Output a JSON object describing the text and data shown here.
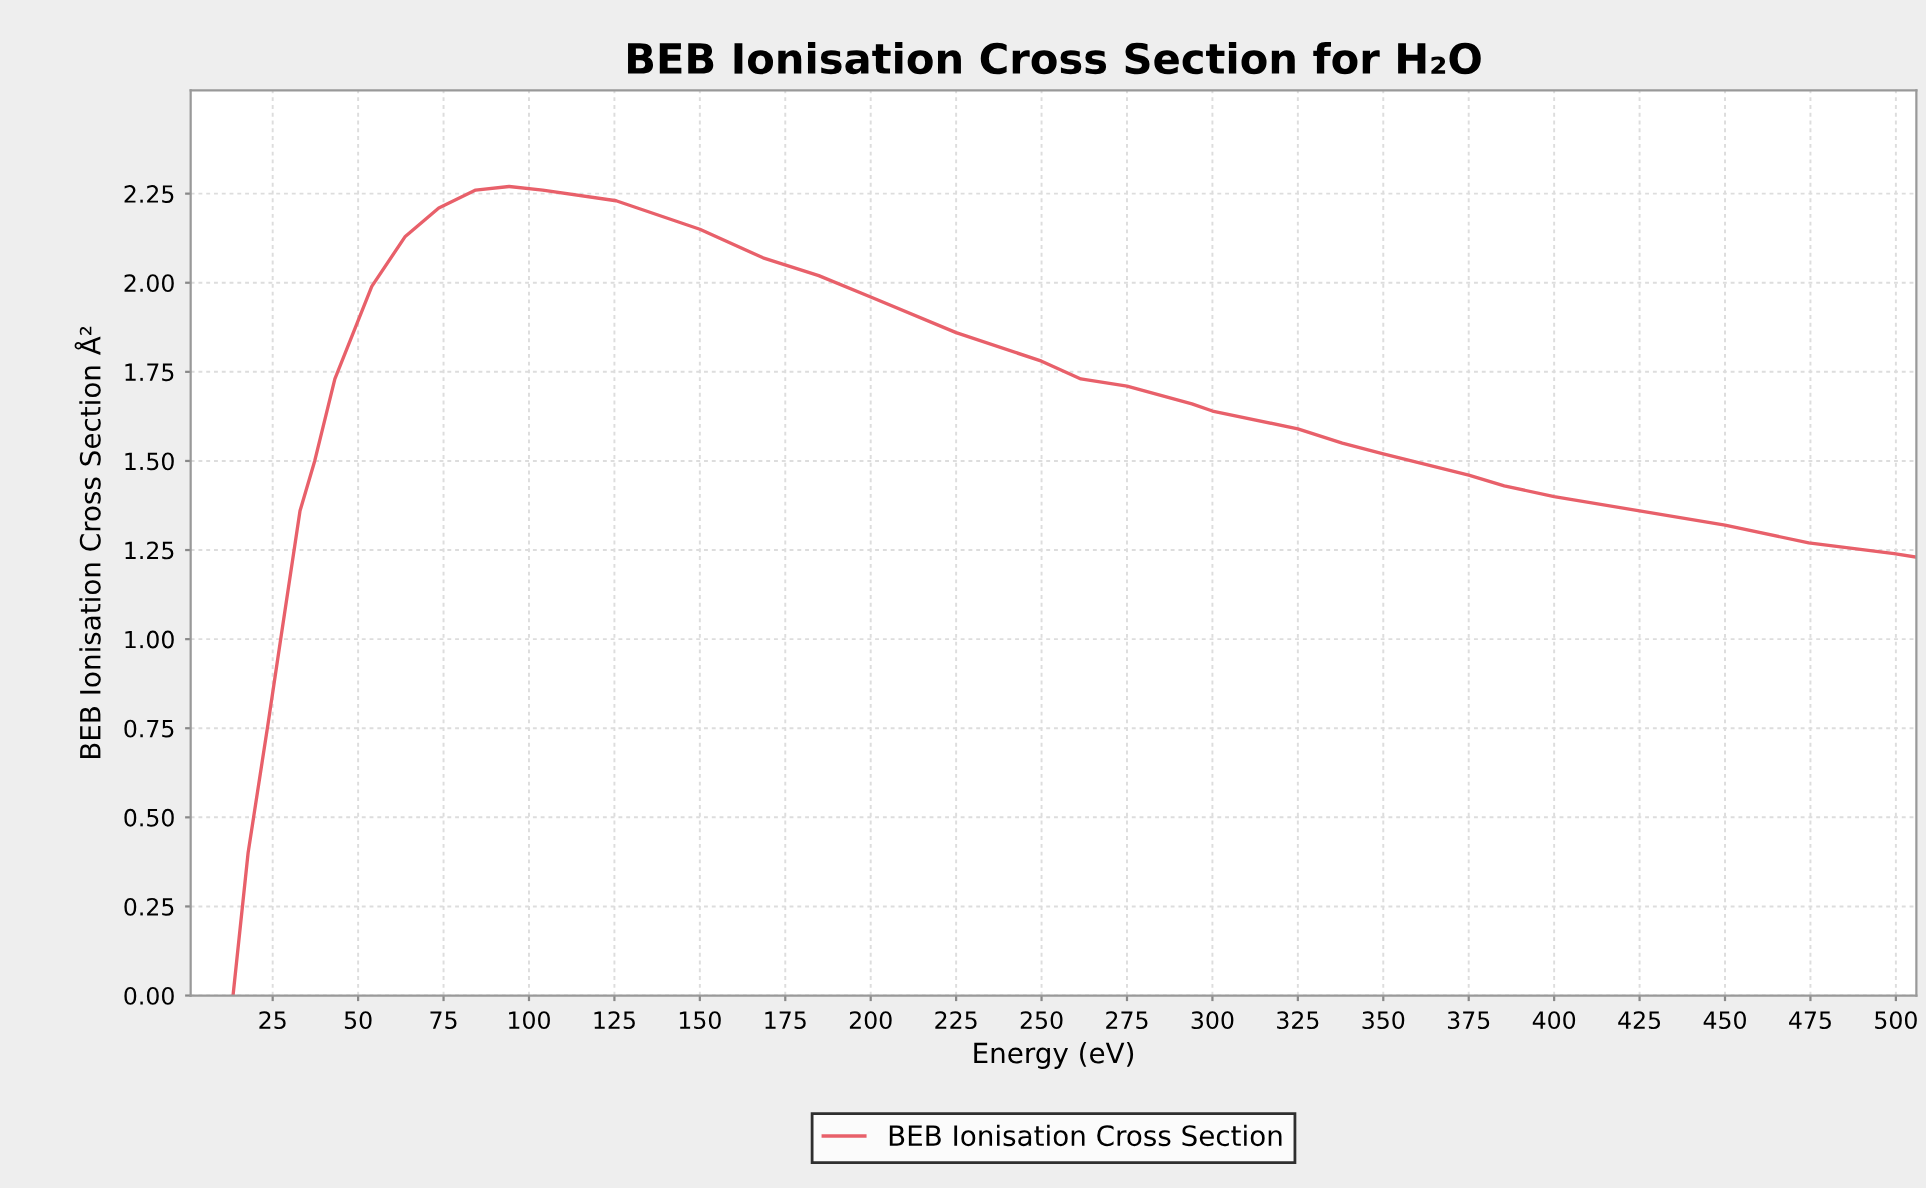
{
  "chart_data": {
    "type": "line",
    "title": "BEB Ionisation Cross Section for H₂O",
    "xlabel": "Energy (eV)",
    "ylabel": "BEB Ionisation Cross Section Å²",
    "x": [
      13.4,
      17.8,
      23.6,
      27.5,
      33.0,
      37.3,
      43.2,
      54.0,
      63.8,
      73.6,
      84.4,
      94.2,
      104,
      125.5,
      150,
      168.5,
      184.8,
      200,
      225,
      250,
      261.5,
      275,
      294,
      300,
      325,
      338,
      350,
      375,
      385.4,
      400,
      425,
      450,
      474.5,
      499.5,
      506
    ],
    "series": [
      {
        "name": "BEB Ionisation Cross Section",
        "color": "#e8606a",
        "values": [
          0.0,
          0.4,
          0.76,
          1.01,
          1.36,
          1.5,
          1.73,
          1.99,
          2.13,
          2.21,
          2.26,
          2.27,
          2.26,
          2.23,
          2.15,
          2.07,
          2.02,
          1.96,
          1.86,
          1.78,
          1.73,
          1.71,
          1.66,
          1.64,
          1.59,
          1.55,
          1.52,
          1.46,
          1.43,
          1.4,
          1.36,
          1.32,
          1.27,
          1.24,
          1.23
        ]
      }
    ],
    "xlim": [
      1,
      506
    ],
    "ylim": [
      0,
      2.54
    ],
    "xticks": [
      25,
      50,
      75,
      100,
      125,
      150,
      175,
      200,
      225,
      250,
      275,
      300,
      325,
      350,
      375,
      400,
      425,
      450,
      475,
      500
    ],
    "yticks": [
      {
        "value": 0,
        "label": "0.00"
      },
      {
        "value": 0.25,
        "label": "0.25"
      },
      {
        "value": 0.5,
        "label": "0.50"
      },
      {
        "value": 0.75,
        "label": "0.75"
      },
      {
        "value": 1,
        "label": "1.00"
      },
      {
        "value": 1.25,
        "label": "1.25"
      },
      {
        "value": 1.5,
        "label": "1.50"
      },
      {
        "value": 1.75,
        "label": "1.75"
      },
      {
        "value": 2,
        "label": "2.00"
      },
      {
        "value": 2.25,
        "label": "2.25"
      }
    ],
    "grid": true,
    "legend": "bottom",
    "marker": "none",
    "line_style": "solid"
  }
}
